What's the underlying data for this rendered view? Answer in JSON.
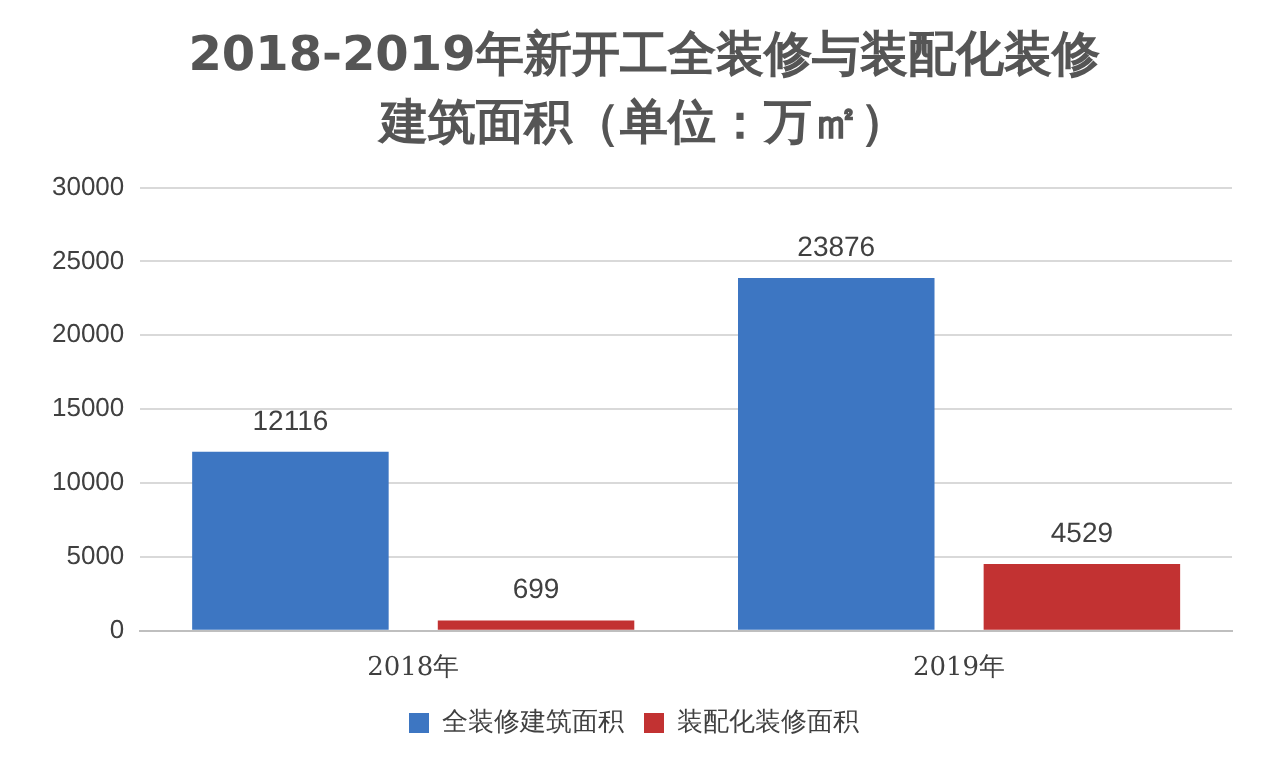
{
  "chart_data": {
    "type": "bar",
    "title": "2018-2019年新开工全装修与装配化装修建筑面积（单位：万㎡）",
    "categories": [
      "2018年",
      "2019年"
    ],
    "series": [
      {
        "name": "全装修建筑面积",
        "color": "#3d76c2",
        "values": [
          12116,
          23876
        ]
      },
      {
        "name": "装配化装修面积",
        "color": "#c23232",
        "values": [
          699,
          4529
        ]
      }
    ],
    "ylim": [
      0,
      30000
    ],
    "yticks": [
      0,
      5000,
      10000,
      15000,
      20000,
      25000,
      30000
    ],
    "grid": "y",
    "legend": "bottom",
    "data_labels": true
  }
}
